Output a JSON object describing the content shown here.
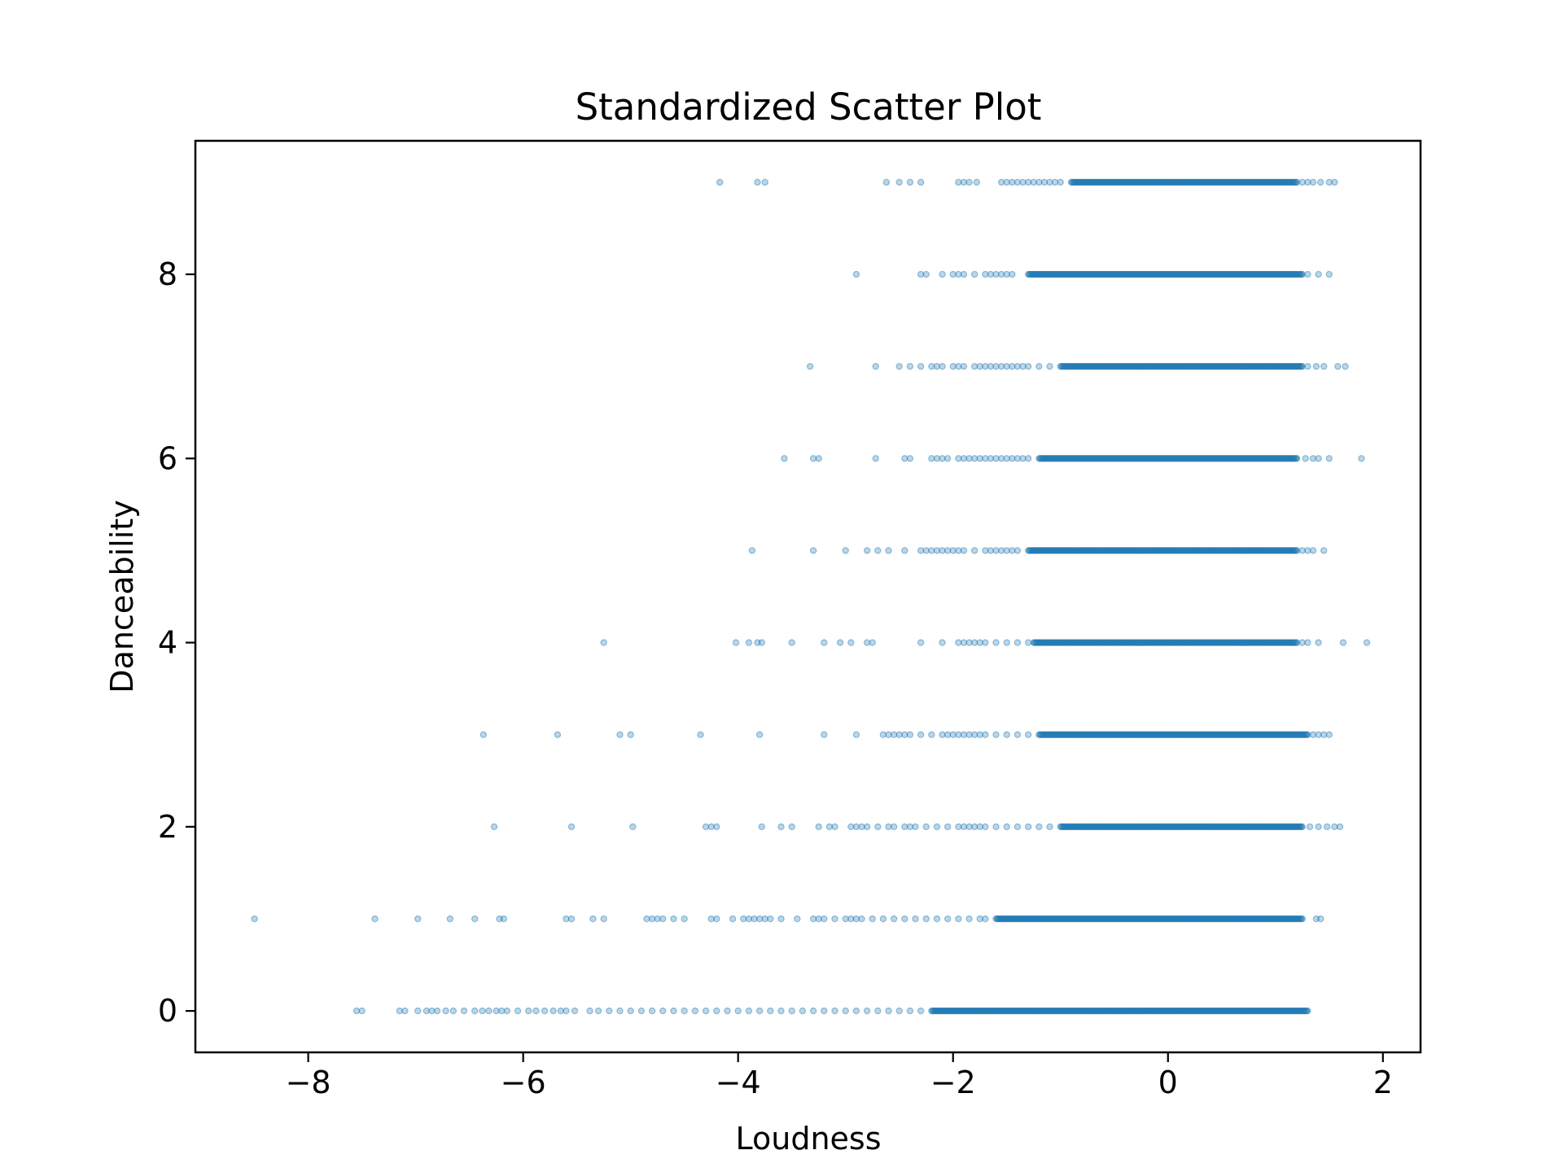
{
  "chart_data": {
    "type": "scatter",
    "title": "Standardized Scatter Plot",
    "xlabel": "Loudness",
    "ylabel": "Danceability",
    "xlim": [
      -9.05,
      2.35
    ],
    "ylim": [
      -0.45,
      9.45
    ],
    "xticks": [
      -8,
      -6,
      -4,
      -2,
      0,
      2
    ],
    "yticks": [
      0,
      2,
      4,
      6,
      8
    ],
    "xtick_labels": [
      "−8",
      "−6",
      "−4",
      "−2",
      "0",
      "2"
    ],
    "ytick_labels": [
      "0",
      "2",
      "4",
      "6",
      "8"
    ],
    "grid": false,
    "legend": "none",
    "marker_color": "#1f77b4",
    "marker_alpha": 0.3,
    "series": [
      {
        "y": 0,
        "dense_range": [
          -2.2,
          1.3
        ],
        "outliers": [
          -7.55,
          -7.5,
          -7.15,
          -7.1,
          -6.98,
          -6.9,
          -6.85,
          -6.8,
          -6.72,
          -6.65,
          -6.55,
          -6.45,
          -6.38,
          -6.32,
          -6.25,
          -6.2,
          -6.15,
          -6.05,
          -5.95,
          -5.88,
          -5.8,
          -5.72,
          -5.65,
          -5.6,
          -5.52,
          -5.38,
          -5.3,
          -5.2,
          -5.1,
          -5.0,
          -4.9,
          -4.8,
          -4.7,
          -4.6,
          -4.5,
          -4.4,
          -4.3,
          -4.2,
          -4.1,
          -4.0,
          -3.9,
          -3.8,
          -3.7,
          -3.6,
          -3.5,
          -3.4,
          -3.3,
          -3.2,
          -3.1,
          -3.0,
          -2.9,
          -2.8,
          -2.7,
          -2.6,
          -2.5,
          -2.4,
          -2.3
        ]
      },
      {
        "y": 1,
        "dense_range": [
          -1.6,
          1.25
        ],
        "outliers": [
          -8.5,
          -7.38,
          -6.98,
          -6.68,
          -6.45,
          -6.22,
          -6.18,
          -5.6,
          -5.55,
          -5.35,
          -5.25,
          -4.85,
          -4.8,
          -4.75,
          -4.7,
          -4.6,
          -4.5,
          -4.25,
          -4.2,
          -4.05,
          -3.95,
          -3.9,
          -3.85,
          -3.8,
          -3.75,
          -3.7,
          -3.6,
          -3.45,
          -3.3,
          -3.25,
          -3.2,
          -3.1,
          -3.0,
          -2.95,
          -2.9,
          -2.85,
          -2.75,
          -2.65,
          -2.55,
          -2.45,
          -2.35,
          -2.25,
          -2.15,
          -2.05,
          -1.95,
          -1.85,
          -1.75,
          -1.7,
          1.38,
          1.42
        ]
      },
      {
        "y": 2,
        "dense_range": [
          -1.0,
          1.25
        ],
        "outliers": [
          -6.27,
          -5.55,
          -4.98,
          -4.3,
          -4.25,
          -4.2,
          -3.78,
          -3.6,
          -3.5,
          -3.25,
          -3.15,
          -3.1,
          -2.95,
          -2.9,
          -2.85,
          -2.8,
          -2.7,
          -2.6,
          -2.55,
          -2.45,
          -2.4,
          -2.35,
          -2.25,
          -2.15,
          -2.05,
          -1.95,
          -1.9,
          -1.85,
          -1.8,
          -1.75,
          -1.7,
          -1.6,
          -1.5,
          -1.4,
          -1.3,
          -1.2,
          -1.1,
          1.32,
          1.4,
          1.48,
          1.55,
          1.6
        ]
      },
      {
        "y": 3,
        "dense_range": [
          -1.2,
          1.3
        ],
        "outliers": [
          -6.37,
          -5.68,
          -5.1,
          -5.0,
          -4.35,
          -3.8,
          -3.2,
          -2.9,
          -2.65,
          -2.6,
          -2.55,
          -2.5,
          -2.45,
          -2.4,
          -2.3,
          -2.2,
          -2.1,
          -2.05,
          -2.0,
          -1.95,
          -1.9,
          -1.85,
          -1.8,
          -1.75,
          -1.7,
          -1.6,
          -1.5,
          -1.4,
          -1.3,
          1.35,
          1.4,
          1.45,
          1.5
        ]
      },
      {
        "y": 4,
        "dense_range": [
          -1.25,
          1.2
        ],
        "outliers": [
          -5.25,
          -4.02,
          -3.9,
          -3.82,
          -3.78,
          -3.5,
          -3.2,
          -3.05,
          -2.95,
          -2.8,
          -2.75,
          -2.3,
          -2.1,
          -1.95,
          -1.9,
          -1.85,
          -1.8,
          -1.75,
          -1.7,
          -1.6,
          -1.5,
          -1.4,
          -1.3,
          1.25,
          1.3,
          1.4,
          1.63,
          1.85
        ]
      },
      {
        "y": 5,
        "dense_range": [
          -1.3,
          1.2
        ],
        "outliers": [
          -3.87,
          -3.3,
          -3.0,
          -2.8,
          -2.7,
          -2.6,
          -2.45,
          -2.3,
          -2.25,
          -2.2,
          -2.15,
          -2.1,
          -2.05,
          -2.0,
          -1.95,
          -1.9,
          -1.8,
          -1.7,
          -1.65,
          -1.6,
          -1.55,
          -1.5,
          -1.45,
          -1.4,
          1.25,
          1.3,
          1.35,
          1.45
        ]
      },
      {
        "y": 6,
        "dense_range": [
          -1.2,
          1.2
        ],
        "outliers": [
          -3.57,
          -3.3,
          -3.25,
          -2.72,
          -2.45,
          -2.4,
          -2.2,
          -2.15,
          -2.1,
          -2.05,
          -1.95,
          -1.9,
          -1.85,
          -1.8,
          -1.75,
          -1.7,
          -1.65,
          -1.6,
          -1.55,
          -1.5,
          -1.45,
          -1.4,
          -1.35,
          -1.3,
          1.28,
          1.35,
          1.4,
          1.5,
          1.8
        ]
      },
      {
        "y": 7,
        "dense_range": [
          -1.0,
          1.25
        ],
        "outliers": [
          -3.33,
          -2.72,
          -2.5,
          -2.4,
          -2.3,
          -2.2,
          -2.15,
          -2.1,
          -2.0,
          -1.95,
          -1.9,
          -1.8,
          -1.75,
          -1.7,
          -1.65,
          -1.6,
          -1.55,
          -1.5,
          -1.45,
          -1.4,
          -1.35,
          -1.3,
          -1.2,
          -1.1,
          1.3,
          1.38,
          1.45,
          1.58,
          1.65
        ]
      },
      {
        "y": 8,
        "dense_range": [
          -1.3,
          1.25
        ],
        "outliers": [
          -2.9,
          -2.3,
          -2.25,
          -2.1,
          -2.0,
          -1.95,
          -1.9,
          -1.8,
          -1.7,
          -1.65,
          -1.6,
          -1.55,
          -1.5,
          -1.45,
          1.3,
          1.4,
          1.5
        ]
      },
      {
        "y": 9,
        "dense_range": [
          -0.9,
          1.2
        ],
        "outliers": [
          -4.17,
          -3.82,
          -3.75,
          -2.62,
          -2.5,
          -2.4,
          -2.3,
          -1.95,
          -1.9,
          -1.85,
          -1.78,
          -1.55,
          -1.5,
          -1.45,
          -1.4,
          -1.35,
          -1.3,
          -1.25,
          -1.2,
          -1.15,
          -1.1,
          -1.05,
          -1.0,
          1.25,
          1.3,
          1.35,
          1.42,
          1.5,
          1.55
        ]
      }
    ]
  }
}
